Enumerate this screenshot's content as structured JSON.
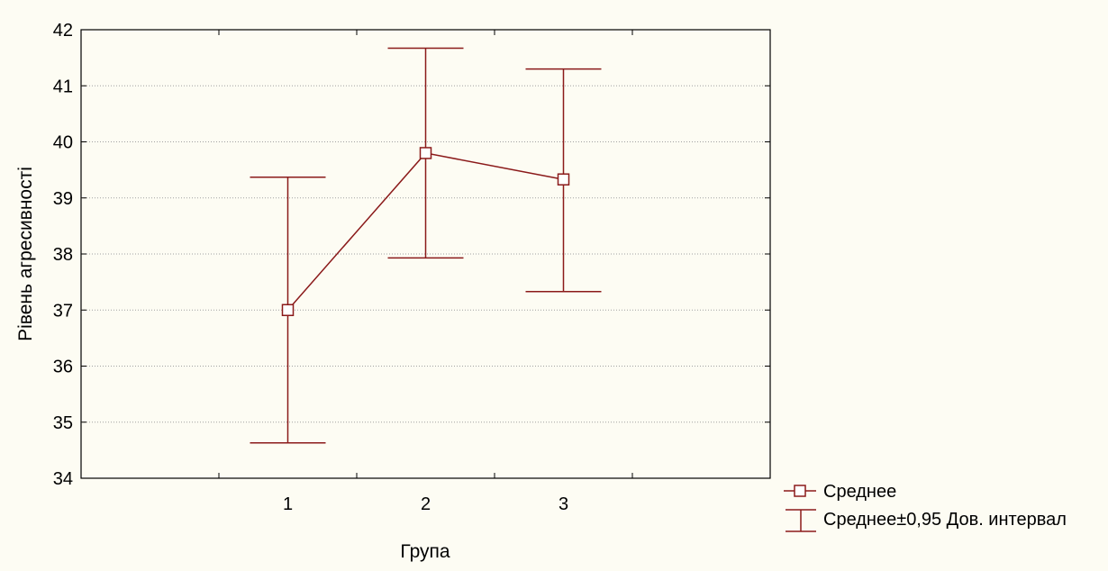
{
  "chart_data": {
    "type": "line",
    "title": "",
    "xlabel": "Група",
    "ylabel": "Рівень агресивності",
    "categories": [
      "1",
      "2",
      "3"
    ],
    "ylim": [
      34,
      42
    ],
    "yticks": [
      "34",
      "35",
      "36",
      "37",
      "38",
      "39",
      "40",
      "41",
      "42"
    ],
    "grid": true,
    "legend_position": "bottom-right",
    "series": [
      {
        "name": "Среднее",
        "values": [
          37.0,
          39.8,
          39.33
        ],
        "lower": [
          34.63,
          37.93,
          37.33
        ],
        "upper": [
          39.37,
          41.67,
          41.3
        ]
      }
    ],
    "legend": {
      "mean_label": "Среднее",
      "ci_label": "Среднее±0,95 Дов. интервал"
    },
    "colors": {
      "series": "#8b1a1a",
      "grid": "#a0a0a0",
      "axis": "#000000",
      "background": "#fdfcf3"
    }
  }
}
